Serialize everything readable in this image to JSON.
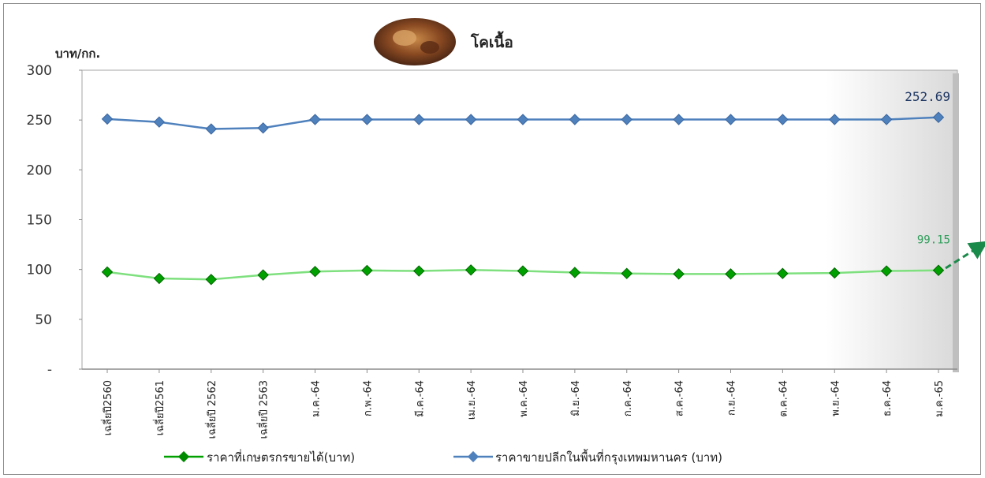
{
  "chart_data": {
    "type": "line",
    "title": "โคเนื้อ",
    "ylabel": "บาท/กก.",
    "xlabel": "",
    "ylim": [
      0,
      300
    ],
    "yticks": [
      {
        "value": 0,
        "label": "-"
      },
      {
        "value": 50,
        "label": "50"
      },
      {
        "value": 100,
        "label": "100"
      },
      {
        "value": 150,
        "label": "150"
      },
      {
        "value": 200,
        "label": "200"
      },
      {
        "value": 250,
        "label": "250"
      },
      {
        "value": 300,
        "label": "300"
      }
    ],
    "categories": [
      "เฉลี่ยปี2560",
      "เฉลี่ยปี2561",
      "เฉลี่ยปี 2562",
      "เฉลี่ยปี 2563",
      "ม.ค.-64",
      "ก.พ.-64",
      "มี.ค.-64",
      "เม.ย.-64",
      "พ.ค.-64",
      "มิ.ย.-64",
      "ก.ค.-64",
      "ส.ค.-64",
      "ก.ย.-64",
      "ต.ค.-64",
      "พ.ย.-64",
      "ธ.ค.-64",
      "ม.ค.-65"
    ],
    "series": [
      {
        "name": "ราคาที่เกษตรกรขายได้(บาท)",
        "color": "#00a000",
        "line_color": "#7ee07e",
        "values": [
          97.5,
          91,
          90,
          94.5,
          98,
          99,
          98.5,
          99.5,
          98.5,
          97,
          96,
          95.5,
          95.5,
          96,
          96.5,
          98.5,
          99.15
        ],
        "last_label": "99.15"
      },
      {
        "name": "ราคาขายปลีกในพื้นที่กรุงเทพมหานคร (บาท)",
        "color": "#4f81bd",
        "line_color": "#4f81bd",
        "values": [
          251,
          248,
          241,
          242,
          250.5,
          250.5,
          250.5,
          250.5,
          250.5,
          250.5,
          250.5,
          250.5,
          250.5,
          250.5,
          250.5,
          250.5,
          252.69
        ],
        "last_label": "252.69"
      }
    ],
    "grid": false,
    "legend_position": "bottom"
  },
  "icons": {
    "title_image": "cattle-photo-icon",
    "annotation": "green-dashed-arrow-icon"
  }
}
